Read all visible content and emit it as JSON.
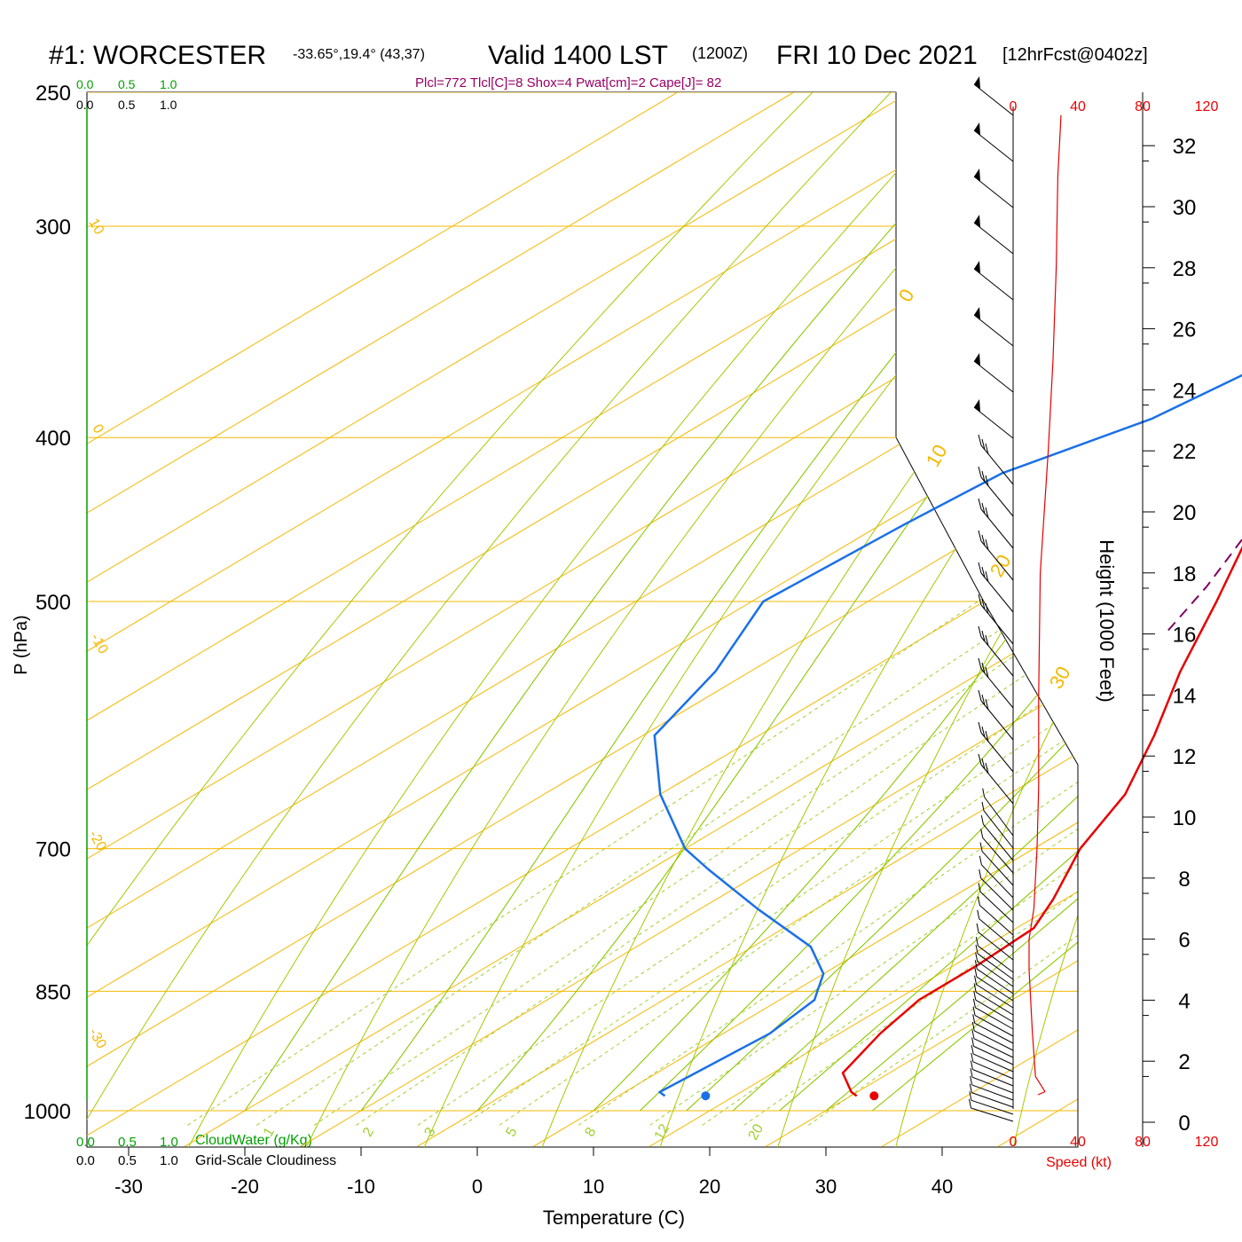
{
  "header": {
    "station": "#1: WORCESTER",
    "coords": "-33.65°,19.4° (43,37)",
    "valid": "Valid 1400 LST",
    "zulu": "(1200Z)",
    "date": "FRI 10 Dec 2021",
    "forecast": "[12hrFcst@0402z]",
    "indices": "Plcl=772 Tlcl[C]=8 Shox=4 Pwat[cm]=2 Cape[J]= 82"
  },
  "colors": {
    "isotherm": "#f5b800",
    "dry_adiabat": "#a8c800",
    "moist_adiabat": "#8cc800",
    "mixing_ratio": "#a0d030",
    "temperature": "#e80000",
    "dewpoint": "#1a70e8",
    "parcel": "#800060",
    "cloud_green": "#00a000",
    "speed_red": "#e80000"
  },
  "chart_data": {
    "type": "line",
    "xlabel": "Temperature (C)",
    "ylabel": "P (hPa)",
    "y2label": "Height (1000 Feet)",
    "xlim": [
      -35,
      45
    ],
    "plim": [
      1020,
      250
    ],
    "log_pressure": true,
    "skew": true,
    "x_ticks": [
      "-30",
      "-20",
      "-10",
      "0",
      "10",
      "20",
      "30",
      "40"
    ],
    "p_ticks": [
      "250",
      "300",
      "400",
      "500",
      "700",
      "850",
      "1000"
    ],
    "height_ticks": [
      "0",
      "2",
      "4",
      "6",
      "8",
      "10",
      "12",
      "14",
      "16",
      "18",
      "20",
      "22",
      "24",
      "26",
      "28",
      "30",
      "32"
    ],
    "isotherm_labels": [
      "10",
      "0",
      "-10",
      "-20",
      "-30",
      "0",
      "10",
      "20",
      "30"
    ],
    "mixing_ratio_labels": [
      "1",
      "2",
      "3",
      "5",
      "8",
      "12",
      "20"
    ],
    "cloud_scale_top": {
      "green": [
        "0.0",
        "0.5",
        "1.0"
      ],
      "black": [
        "0.0",
        "0.5",
        "1.0"
      ]
    },
    "cloud_scale_bottom": {
      "green": [
        "0.0",
        "0.5",
        "1.0"
      ],
      "green_label": "CloudWater (g/Kg)",
      "black": [
        "0.0",
        "0.5",
        "1.0"
      ],
      "black_label": "Grid-Scale Cloudiness"
    },
    "speed_ticks": [
      "0",
      "40",
      "80",
      "120"
    ],
    "speed_label": "Speed (kt)",
    "series": [
      {
        "name": "Temperature",
        "points": [
          [
            980,
            30.5
          ],
          [
            975,
            29.5
          ],
          [
            950,
            26
          ],
          [
            900,
            23.5
          ],
          [
            860,
            22
          ],
          [
            820,
            22
          ],
          [
            780,
            21.5
          ],
          [
            750,
            19
          ],
          [
            700,
            14
          ],
          [
            650,
            10
          ],
          [
            600,
            4
          ],
          [
            550,
            -3
          ],
          [
            500,
            -10
          ],
          [
            450,
            -18
          ],
          [
            400,
            -25
          ],
          [
            350,
            -33
          ],
          [
            300,
            -41
          ],
          [
            260,
            -49
          ]
        ]
      },
      {
        "name": "Dewpoint",
        "points": [
          [
            980,
            14
          ],
          [
            975,
            13
          ],
          [
            900,
            14
          ],
          [
            860,
            13
          ],
          [
            850,
            12
          ],
          [
            830,
            10
          ],
          [
            800,
            5
          ],
          [
            760,
            -5
          ],
          [
            720,
            -15
          ],
          [
            700,
            -20
          ],
          [
            650,
            -30
          ],
          [
            600,
            -39
          ],
          [
            550,
            -43
          ],
          [
            500,
            -49
          ],
          [
            450,
            -48
          ],
          [
            420,
            -47
          ],
          [
            390,
            -42
          ],
          [
            360,
            -40
          ],
          [
            340,
            -43
          ],
          [
            320,
            -46
          ],
          [
            300,
            -50
          ],
          [
            260,
            -57
          ]
        ]
      },
      {
        "name": "Parcel",
        "points": [
          [
            520,
            -10
          ],
          [
            490,
            -13
          ],
          [
            450,
            -18
          ],
          [
            400,
            -25
          ],
          [
            370,
            -29
          ],
          [
            340,
            -33
          ]
        ]
      }
    ],
    "surface_markers": {
      "temperature": 32,
      "dewpoint": 17.5,
      "pressure": 980
    },
    "wind_speed_profile": {
      "heights_kft": [
        1,
        1.5,
        3,
        5,
        6,
        7,
        9,
        11,
        14,
        18,
        22,
        25,
        28,
        31,
        33
      ],
      "speed_kt": [
        20,
        14,
        12,
        10,
        10,
        13,
        15,
        16,
        16,
        17,
        22,
        25,
        27,
        28,
        30
      ]
    }
  }
}
